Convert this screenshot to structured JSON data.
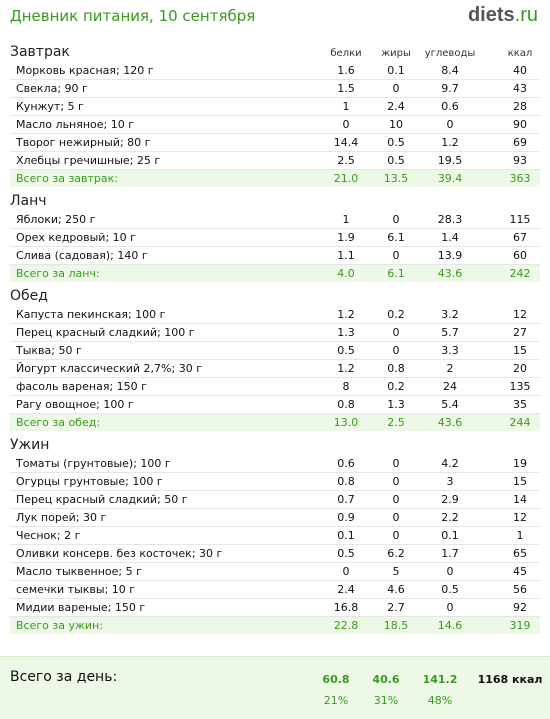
{
  "header": {
    "title": "Дневник питания, 10 сентября",
    "logo_main": "diets",
    "logo_tld": ".ru"
  },
  "columns": {
    "protein": "белки",
    "fat": "жиры",
    "carbs": "углеводы",
    "kcal": "ккал"
  },
  "sections": [
    {
      "title": "Завтрак",
      "items": [
        {
          "name": "Морковь красная; 120 г",
          "protein": "1.6",
          "fat": "0.1",
          "carbs": "8.4",
          "kcal": "40"
        },
        {
          "name": "Свекла; 90 г",
          "protein": "1.5",
          "fat": "0",
          "carbs": "9.7",
          "kcal": "43"
        },
        {
          "name": "Кунжут; 5 г",
          "protein": "1",
          "fat": "2.4",
          "carbs": "0.6",
          "kcal": "28"
        },
        {
          "name": "Масло льняное; 10 г",
          "protein": "0",
          "fat": "10",
          "carbs": "0",
          "kcal": "90"
        },
        {
          "name": "Творог нежирный; 80 г",
          "protein": "14.4",
          "fat": "0.5",
          "carbs": "1.2",
          "kcal": "69"
        },
        {
          "name": "Хлебцы гречишные; 25 г",
          "protein": "2.5",
          "fat": "0.5",
          "carbs": "19.5",
          "kcal": "93"
        }
      ],
      "total": {
        "name": "Всего за завтрак:",
        "protein": "21.0",
        "fat": "13.5",
        "carbs": "39.4",
        "kcal": "363"
      }
    },
    {
      "title": "Ланч",
      "items": [
        {
          "name": "Яблоки; 250 г",
          "protein": "1",
          "fat": "0",
          "carbs": "28.3",
          "kcal": "115"
        },
        {
          "name": "Орех кедровый; 10 г",
          "protein": "1.9",
          "fat": "6.1",
          "carbs": "1.4",
          "kcal": "67"
        },
        {
          "name": "Слива (садовая); 140 г",
          "protein": "1.1",
          "fat": "0",
          "carbs": "13.9",
          "kcal": "60"
        }
      ],
      "total": {
        "name": "Всего за ланч:",
        "protein": "4.0",
        "fat": "6.1",
        "carbs": "43.6",
        "kcal": "242"
      }
    },
    {
      "title": "Обед",
      "items": [
        {
          "name": "Капуста пекинская; 100 г",
          "protein": "1.2",
          "fat": "0.2",
          "carbs": "3.2",
          "kcal": "12"
        },
        {
          "name": "Перец красный сладкий; 100 г",
          "protein": "1.3",
          "fat": "0",
          "carbs": "5.7",
          "kcal": "27"
        },
        {
          "name": "Тыква; 50 г",
          "protein": "0.5",
          "fat": "0",
          "carbs": "3.3",
          "kcal": "15"
        },
        {
          "name": "Йогурт классический 2,7%; 30 г",
          "protein": "1.2",
          "fat": "0.8",
          "carbs": "2",
          "kcal": "20"
        },
        {
          "name": "фасоль вареная; 150 г",
          "protein": "8",
          "fat": "0.2",
          "carbs": "24",
          "kcal": "135"
        },
        {
          "name": "Рагу овощное; 100 г",
          "protein": "0.8",
          "fat": "1.3",
          "carbs": "5.4",
          "kcal": "35"
        }
      ],
      "total": {
        "name": "Всего за обед:",
        "protein": "13.0",
        "fat": "2.5",
        "carbs": "43.6",
        "kcal": "244"
      }
    },
    {
      "title": "Ужин",
      "items": [
        {
          "name": "Томаты (грунтовые); 100 г",
          "protein": "0.6",
          "fat": "0",
          "carbs": "4.2",
          "kcal": "19"
        },
        {
          "name": "Огурцы грунтовые; 100 г",
          "protein": "0.8",
          "fat": "0",
          "carbs": "3",
          "kcal": "15"
        },
        {
          "name": "Перец красный сладкий; 50 г",
          "protein": "0.7",
          "fat": "0",
          "carbs": "2.9",
          "kcal": "14"
        },
        {
          "name": "Лук порей; 30 г",
          "protein": "0.9",
          "fat": "0",
          "carbs": "2.2",
          "kcal": "12"
        },
        {
          "name": "Чеснок; 2 г",
          "protein": "0.1",
          "fat": "0",
          "carbs": "0.1",
          "kcal": "1"
        },
        {
          "name": "Оливки консерв. без косточек; 30 г",
          "protein": "0.5",
          "fat": "6.2",
          "carbs": "1.7",
          "kcal": "65"
        },
        {
          "name": "Масло тыквенное; 5 г",
          "protein": "0",
          "fat": "5",
          "carbs": "0",
          "kcal": "45"
        },
        {
          "name": "семечки тыквы; 10 г",
          "protein": "2.4",
          "fat": "4.6",
          "carbs": "0.5",
          "kcal": "56"
        },
        {
          "name": "Мидии вареные; 150 г",
          "protein": "16.8",
          "fat": "2.7",
          "carbs": "0",
          "kcal": "92"
        }
      ],
      "total": {
        "name": "Всего за ужин:",
        "protein": "22.8",
        "fat": "18.5",
        "carbs": "14.6",
        "kcal": "319"
      }
    }
  ],
  "day_total": {
    "label": "Всего за день:",
    "protein": "60.8",
    "fat": "40.6",
    "carbs": "141.2",
    "kcal": "1168 ккал",
    "protein_pct": "21%",
    "fat_pct": "31%",
    "carbs_pct": "48%"
  }
}
